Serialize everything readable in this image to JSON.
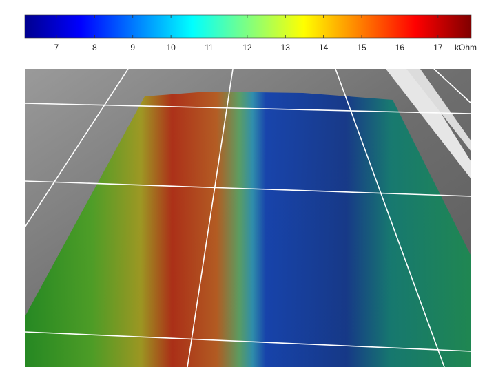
{
  "chart_data": {
    "type": "colorbar",
    "colormap": "jet",
    "clim": [
      6.17,
      17.87
    ],
    "ticks": [
      7,
      8,
      9,
      10,
      11,
      12,
      13,
      14,
      15,
      16,
      17
    ],
    "unit_label": "kOhm"
  }
}
